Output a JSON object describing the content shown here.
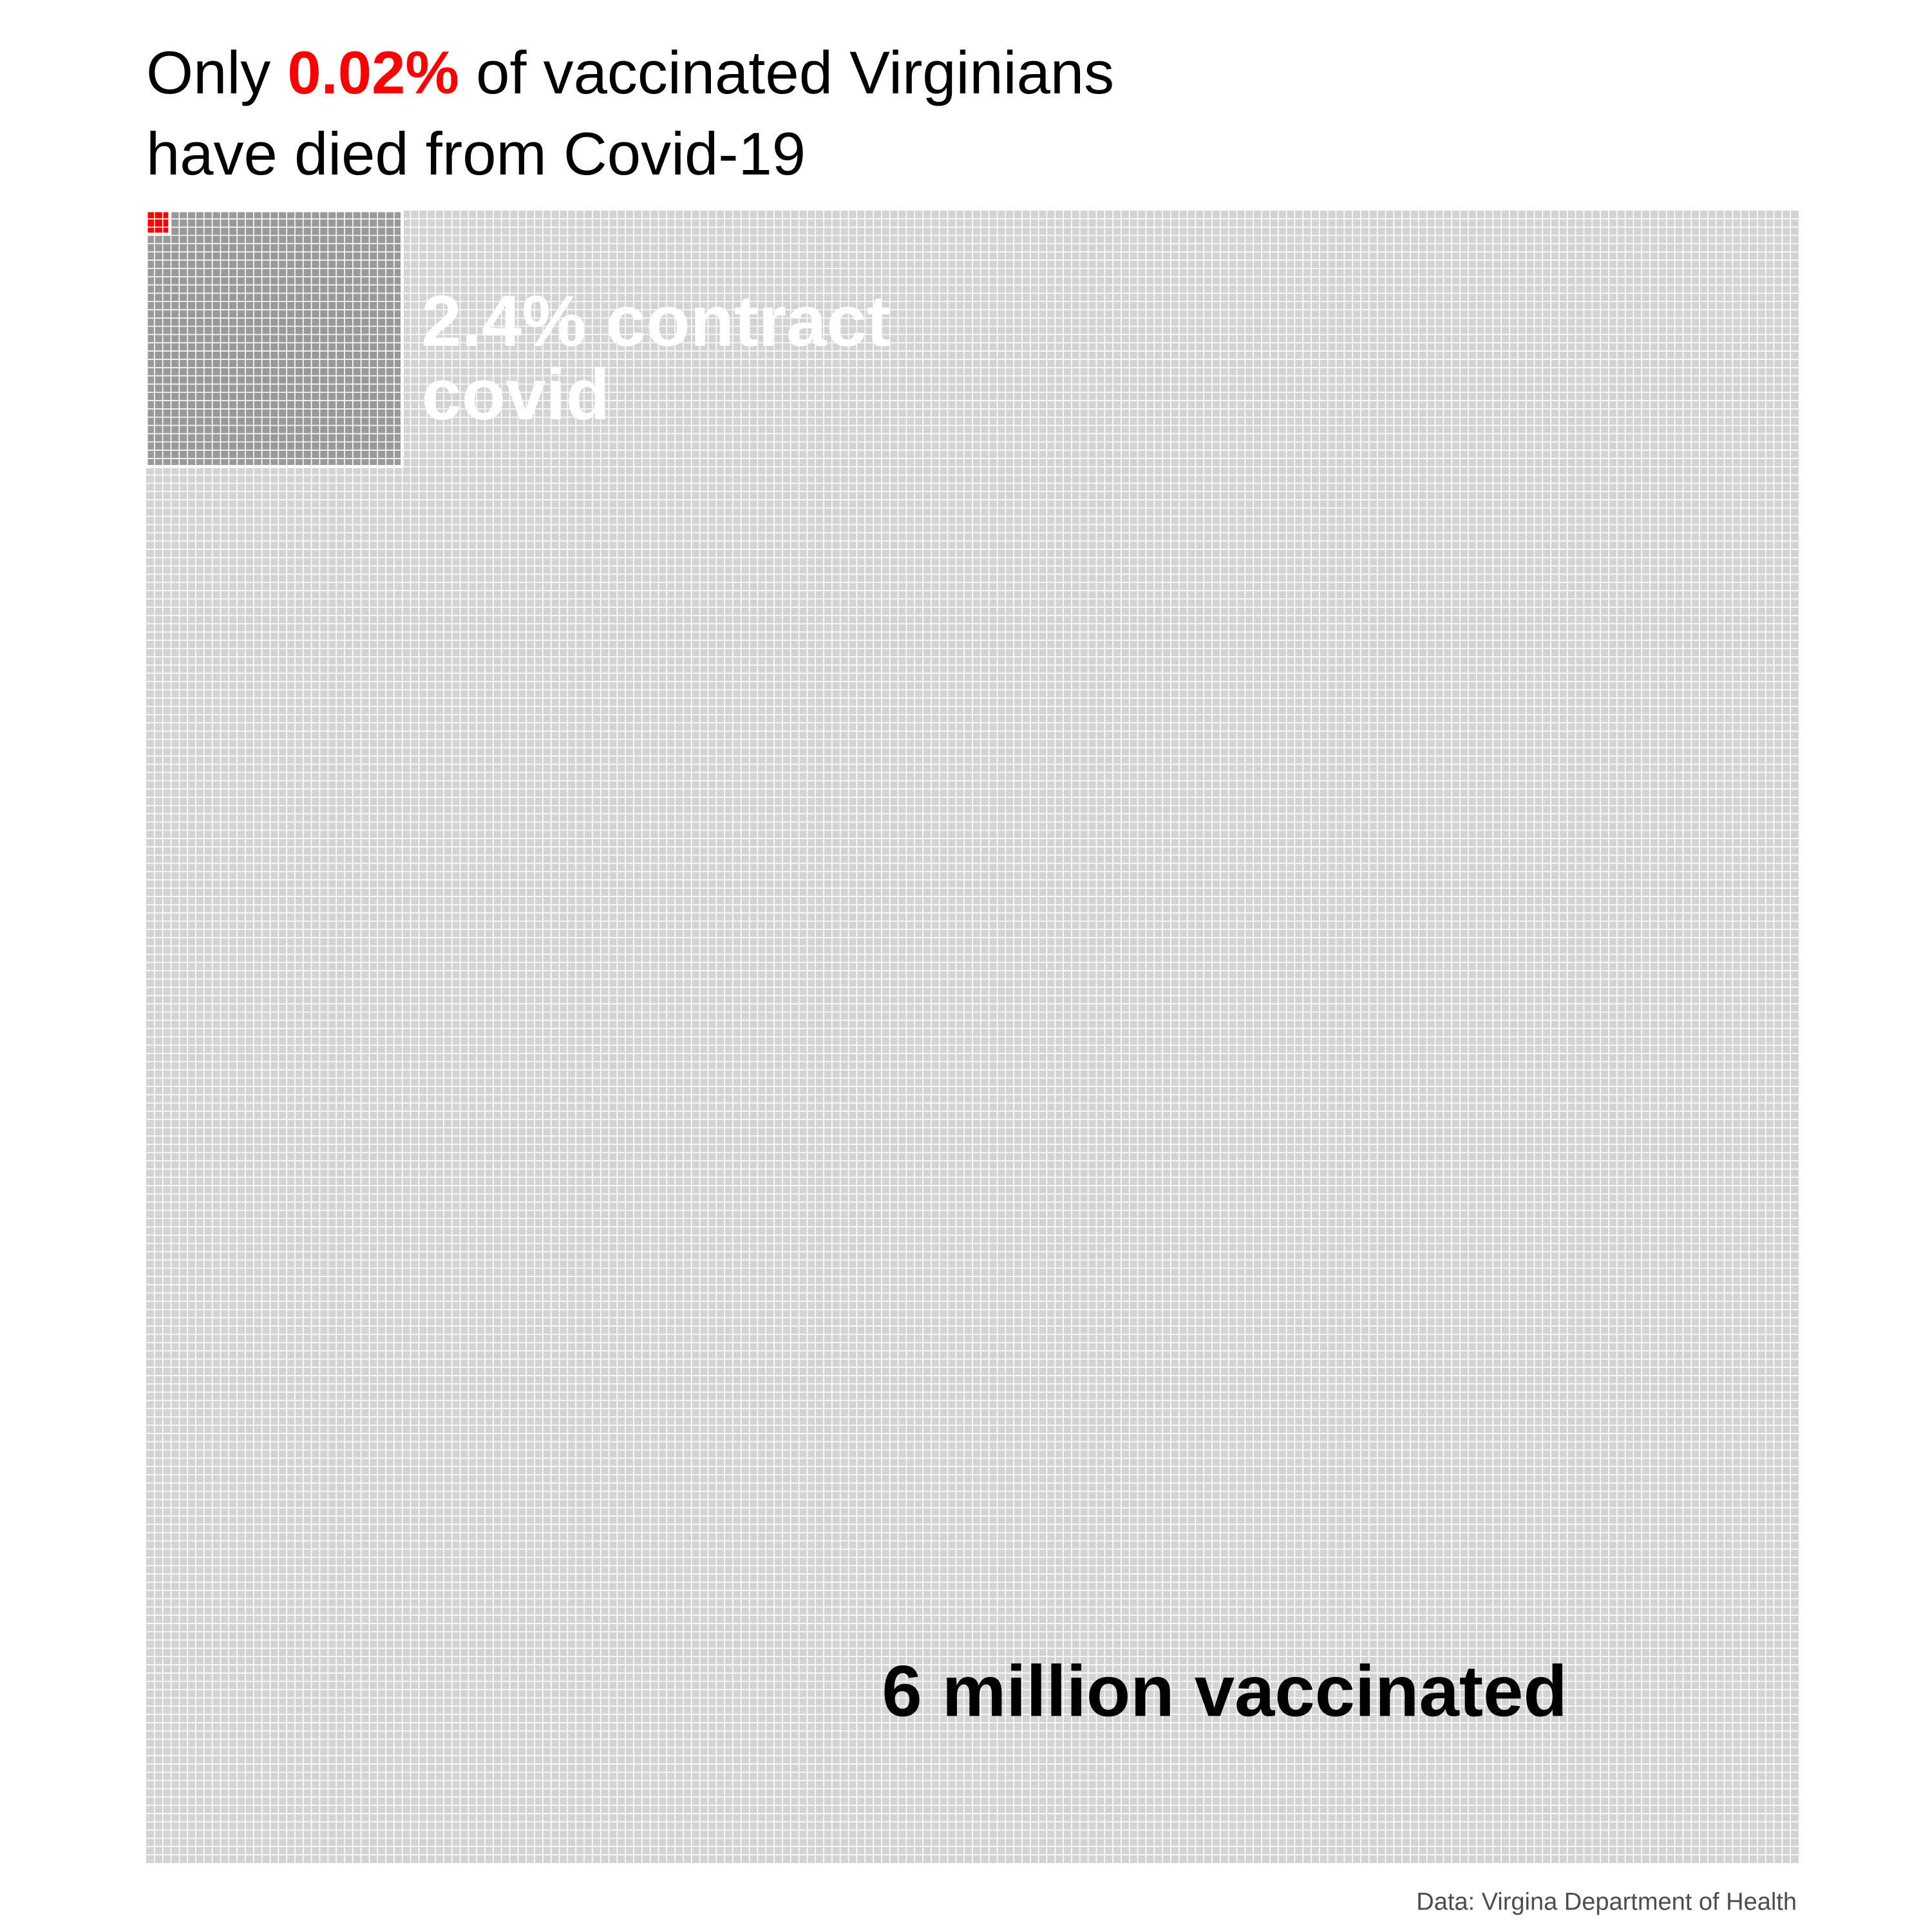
{
  "title": {
    "prefix": "Only ",
    "highlight": "0.02%",
    "line1_suffix": " of vaccinated Virginians",
    "line2": "have died from Covid-19"
  },
  "caption": "Data: Virgina Department of Health",
  "colors": {
    "vaccinated": "#d3d3d3",
    "contracted": "#999999",
    "died": "#ff0000",
    "grid": "#ffffff",
    "highlight": "#ff0000"
  },
  "chart_data": {
    "type": "waffle",
    "total_label": "6 million vaccinated",
    "contract_label": "2.4% contract covid",
    "contract_label_lines": [
      "2.4% contract",
      "covid"
    ],
    "series": [
      {
        "name": "vaccinated",
        "value": 6000000
      },
      {
        "name": "contract covid",
        "value": 2.4,
        "unit": "%"
      },
      {
        "name": "died",
        "value": 0.02,
        "unit": "%"
      }
    ]
  }
}
